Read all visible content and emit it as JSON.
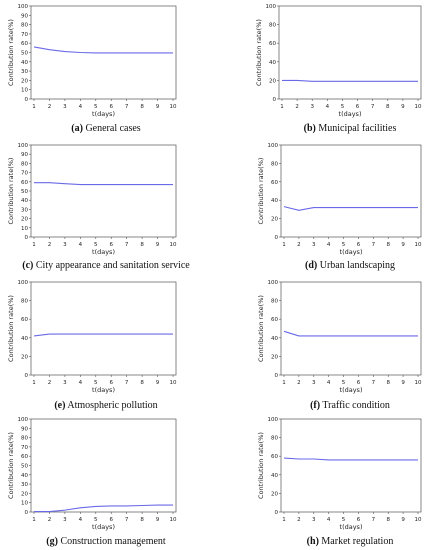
{
  "figure": {
    "line_color": "#6a6ae8",
    "axis_color": "#555555"
  },
  "chart_data": [
    {
      "type": "line",
      "letter": "(a)",
      "caption": "General cases",
      "xlabel": "t(days)",
      "ylabel": "Contribution rate(%)",
      "xlim": [
        1,
        10
      ],
      "ylim": [
        0,
        100
      ],
      "x_ticks": [
        1,
        2,
        3,
        4,
        5,
        6,
        7,
        8,
        9,
        10
      ],
      "y_ticks": [
        0,
        10,
        20,
        30,
        40,
        50,
        60,
        70,
        80,
        90,
        100
      ],
      "series": [
        {
          "x": [
            1,
            2,
            3,
            4,
            5,
            6,
            7,
            8,
            9,
            10
          ],
          "values": [
            56,
            53,
            51,
            50,
            49.5,
            49.5,
            49.5,
            49.5,
            49.5,
            49.5
          ]
        }
      ]
    },
    {
      "type": "line",
      "letter": "(b)",
      "caption": "Municipal facilities",
      "xlabel": "t(days)",
      "ylabel": "Contribution rate(%)",
      "xlim": [
        1,
        10
      ],
      "ylim": [
        0,
        100
      ],
      "x_ticks": [
        1,
        2,
        3,
        4,
        5,
        6,
        7,
        8,
        9,
        10
      ],
      "y_ticks": [
        0,
        20,
        40,
        60,
        80,
        100
      ],
      "series": [
        {
          "x": [
            1,
            2,
            3,
            4,
            5,
            6,
            7,
            8,
            9,
            10
          ],
          "values": [
            20,
            20,
            19,
            19,
            19,
            19,
            19,
            19,
            19,
            19
          ]
        }
      ]
    },
    {
      "type": "line",
      "letter": "(c)",
      "caption": "City appearance and sanitation service",
      "xlabel": "t(days)",
      "ylabel": "Contribution rate(%)",
      "xlim": [
        1,
        10
      ],
      "ylim": [
        0,
        100
      ],
      "x_ticks": [
        1,
        2,
        3,
        4,
        5,
        6,
        7,
        8,
        9,
        10
      ],
      "y_ticks": [
        0,
        10,
        20,
        30,
        40,
        50,
        60,
        70,
        80,
        90,
        100
      ],
      "series": [
        {
          "x": [
            1,
            2,
            3,
            4,
            5,
            6,
            7,
            8,
            9,
            10
          ],
          "values": [
            59,
            59,
            58,
            57,
            57,
            57,
            57,
            57,
            57,
            57
          ]
        }
      ]
    },
    {
      "type": "line",
      "letter": "(d)",
      "caption": "Urban landscaping",
      "xlabel": "t(days)",
      "ylabel": "Contribution rate(%)",
      "xlim": [
        1,
        10
      ],
      "ylim": [
        0,
        100
      ],
      "x_ticks": [
        1,
        2,
        3,
        4,
        5,
        6,
        7,
        8,
        9,
        10
      ],
      "y_ticks": [
        0,
        20,
        40,
        60,
        80,
        100
      ],
      "series": [
        {
          "x": [
            1,
            2,
            3,
            4,
            5,
            6,
            7,
            8,
            9,
            10
          ],
          "values": [
            33,
            29,
            32,
            32,
            32,
            32,
            32,
            32,
            32,
            32
          ]
        }
      ]
    },
    {
      "type": "line",
      "letter": "(e)",
      "caption": "Atmospheric pollution",
      "xlabel": "t(days)",
      "ylabel": "Contribution rate(%)",
      "xlim": [
        1,
        10
      ],
      "ylim": [
        0,
        100
      ],
      "x_ticks": [
        1,
        2,
        3,
        4,
        5,
        6,
        7,
        8,
        9,
        10
      ],
      "y_ticks": [
        0,
        20,
        40,
        60,
        80,
        100
      ],
      "series": [
        {
          "x": [
            1,
            2,
            3,
            4,
            5,
            6,
            7,
            8,
            9,
            10
          ],
          "values": [
            42,
            44,
            44,
            44,
            44,
            44,
            44,
            44,
            44,
            44
          ]
        }
      ]
    },
    {
      "type": "line",
      "letter": "(f)",
      "caption": "Traffic condition",
      "xlabel": "t(days)",
      "ylabel": "Contribution rate(%)",
      "xlim": [
        1,
        10
      ],
      "ylim": [
        0,
        100
      ],
      "x_ticks": [
        1,
        2,
        3,
        4,
        5,
        6,
        7,
        8,
        9,
        10
      ],
      "y_ticks": [
        0,
        20,
        40,
        60,
        80,
        100
      ],
      "series": [
        {
          "x": [
            1,
            2,
            3,
            4,
            5,
            6,
            7,
            8,
            9,
            10
          ],
          "values": [
            47,
            42,
            42,
            42,
            42,
            42,
            42,
            42,
            42,
            42
          ]
        }
      ]
    },
    {
      "type": "line",
      "letter": "(g)",
      "caption": "Construction management",
      "xlabel": "t(days)",
      "ylabel": "Contribution rate(%)",
      "xlim": [
        1,
        10
      ],
      "ylim": [
        0,
        100
      ],
      "x_ticks": [
        1,
        2,
        3,
        4,
        5,
        6,
        7,
        8,
        9,
        10
      ],
      "y_ticks": [
        0,
        10,
        20,
        30,
        40,
        50,
        60,
        70,
        80,
        90,
        100
      ],
      "series": [
        {
          "x": [
            1,
            2,
            3,
            4,
            5,
            6,
            7,
            8,
            9,
            10
          ],
          "values": [
            0.5,
            0.5,
            2,
            4.5,
            6,
            6.5,
            6.5,
            7,
            7.5,
            7.5
          ]
        }
      ]
    },
    {
      "type": "line",
      "letter": "(h)",
      "caption": "Market regulation",
      "xlabel": "t(days)",
      "ylabel": "Contribution rate(%)",
      "xlim": [
        1,
        10
      ],
      "ylim": [
        0,
        100
      ],
      "x_ticks": [
        1,
        2,
        3,
        4,
        5,
        6,
        7,
        8,
        9,
        10
      ],
      "y_ticks": [
        0,
        20,
        40,
        60,
        80,
        100
      ],
      "series": [
        {
          "x": [
            1,
            2,
            3,
            4,
            5,
            6,
            7,
            8,
            9,
            10
          ],
          "values": [
            58,
            57,
            57,
            56,
            56,
            56,
            56,
            56,
            56,
            56
          ]
        }
      ]
    }
  ]
}
